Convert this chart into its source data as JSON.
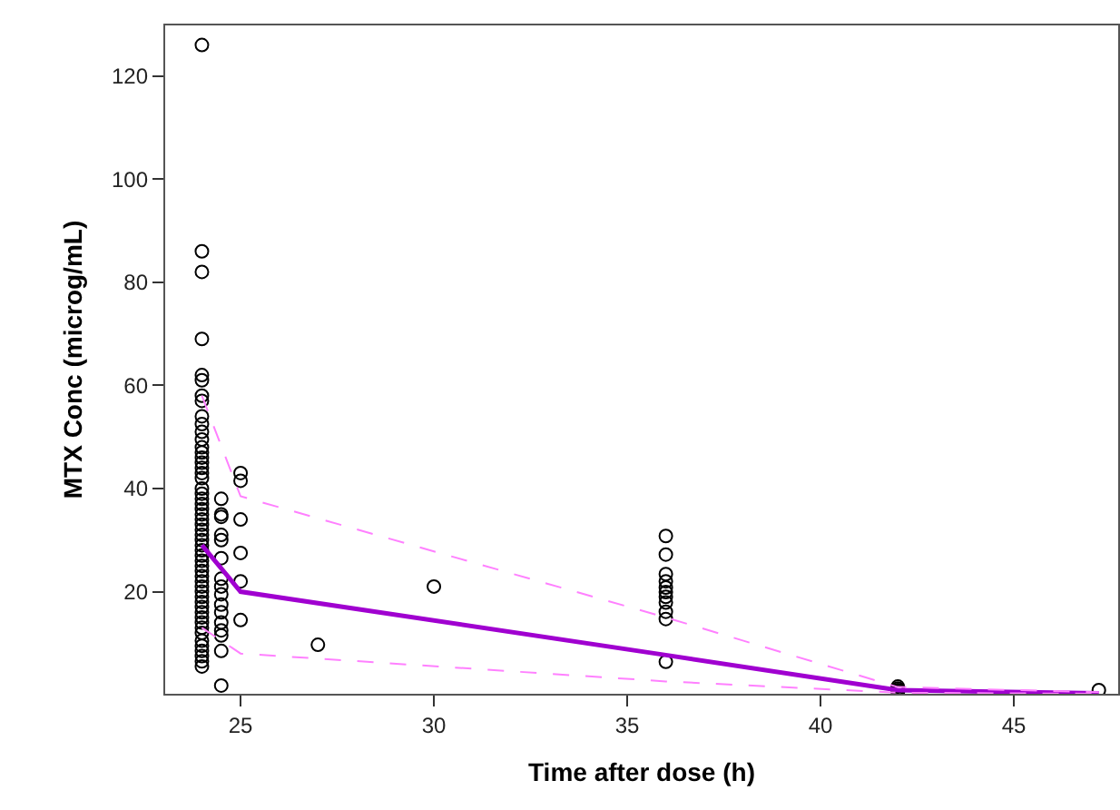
{
  "chart_data": {
    "type": "scatter",
    "xlabel": "Time after dose (h)",
    "ylabel": "MTX Conc (microg/mL)",
    "xlim": [
      23.05,
      47.7
    ],
    "ylim": [
      0.2,
      129.8
    ],
    "xticks": [
      25,
      30,
      35,
      40,
      45
    ],
    "yticks": [
      20,
      40,
      60,
      80,
      100,
      120
    ],
    "series": [
      {
        "color": "#000000",
        "marker": "circle",
        "x": [
          24,
          24,
          24,
          24,
          24,
          24,
          24,
          24,
          24,
          24,
          24,
          24,
          24,
          24,
          24,
          24,
          24,
          24,
          24,
          24,
          24,
          24,
          24,
          24,
          24,
          24,
          24,
          24,
          24,
          24,
          24,
          24,
          24,
          24,
          24,
          24,
          24,
          24,
          24,
          24,
          24,
          24,
          24,
          24,
          24,
          24,
          24,
          24,
          24,
          24,
          24,
          24,
          24,
          24,
          24.5,
          24.5,
          24.5,
          24.5,
          24.5,
          24.5,
          24.5,
          24.5,
          24.5,
          24.5,
          24.5,
          24.5,
          24.5,
          24.5,
          24.5,
          24.5,
          25,
          25,
          25,
          25,
          25,
          25,
          27,
          30,
          36,
          36,
          36,
          36,
          36,
          36,
          36,
          36,
          36,
          36,
          36,
          42,
          42,
          42,
          42,
          47.2
        ],
        "values": [
          126,
          86,
          82,
          69,
          62,
          61,
          58,
          57,
          54,
          52.5,
          51,
          49.5,
          48,
          47,
          46,
          45,
          44,
          43,
          42,
          40,
          39,
          38,
          37,
          36,
          35,
          34,
          33,
          32,
          31,
          30,
          29,
          28,
          27,
          26,
          25,
          24,
          23,
          22,
          21,
          20,
          19,
          18,
          17,
          16,
          15,
          14,
          13,
          12,
          10.5,
          9.5,
          8.5,
          7.5,
          6.5,
          5.5,
          38,
          35,
          34.5,
          31,
          30,
          26.5,
          22.5,
          21,
          19.5,
          17.5,
          16,
          14,
          12.5,
          11.5,
          8.5,
          1.8,
          43,
          41.5,
          34,
          27.5,
          22,
          14.5,
          9.7,
          21,
          30.8,
          27.2,
          23.4,
          22,
          20.8,
          19.9,
          19,
          17.9,
          16.1,
          14.7,
          6.4,
          1.6,
          1.2,
          0.9,
          0.6,
          0.9
        ]
      },
      {
        "type": "line",
        "color": "#a000d0",
        "line_style": "solid",
        "marker": "none",
        "x": [
          24,
          25,
          36,
          42,
          47.2
        ],
        "values": [
          29,
          20,
          7.7,
          0.9,
          0.3
        ]
      },
      {
        "type": "line",
        "color": "#ff80ff",
        "line_style": "dashed",
        "marker": "none",
        "x": [
          24,
          25,
          36,
          42,
          47.2
        ],
        "values": [
          58,
          38.5,
          15,
          1.5,
          0.5
        ]
      },
      {
        "type": "line",
        "color": "#ff80ff",
        "line_style": "dashed",
        "marker": "none",
        "x": [
          24,
          25,
          36,
          42,
          47.2
        ],
        "values": [
          13,
          8,
          2.6,
          0.4,
          0.2
        ]
      }
    ]
  }
}
